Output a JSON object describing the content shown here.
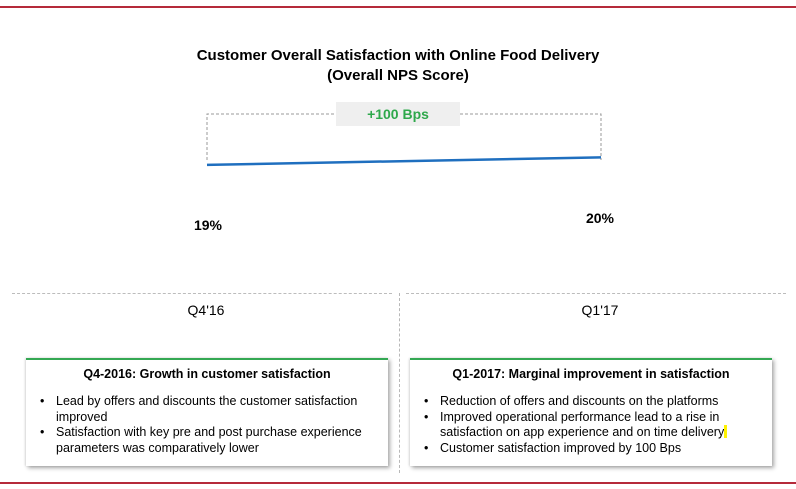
{
  "chart_data": {
    "type": "line",
    "title": "Customer Overall Satisfaction with Online Food Delivery",
    "subtitle": "(Overall NPS Score)",
    "categories": [
      "Q4'16",
      "Q1'17"
    ],
    "values": [
      19,
      20
    ],
    "data_labels": [
      "19%",
      "20%"
    ],
    "annotation": "+100 Bps",
    "ylim": [
      0,
      35
    ],
    "line_color": "#1f6fbf",
    "annotation_color": "#2ea84b"
  },
  "panels": [
    {
      "quarter": "Q4'16",
      "heading": "Q4-2016: Growth in customer satisfaction",
      "bullets": [
        "Lead by offers and discounts the customer satisfaction improved",
        "Satisfaction with key pre and post purchase experience parameters was comparatively lower"
      ]
    },
    {
      "quarter": "Q1'17",
      "heading": "Q1-2017: Marginal improvement in satisfaction",
      "bullets": [
        "Reduction of offers and discounts on the platforms",
        "Improved operational performance lead to a rise in satisfaction on app experience and on time delivery",
        "Customer satisfaction improved by 100 Bps"
      ]
    }
  ]
}
